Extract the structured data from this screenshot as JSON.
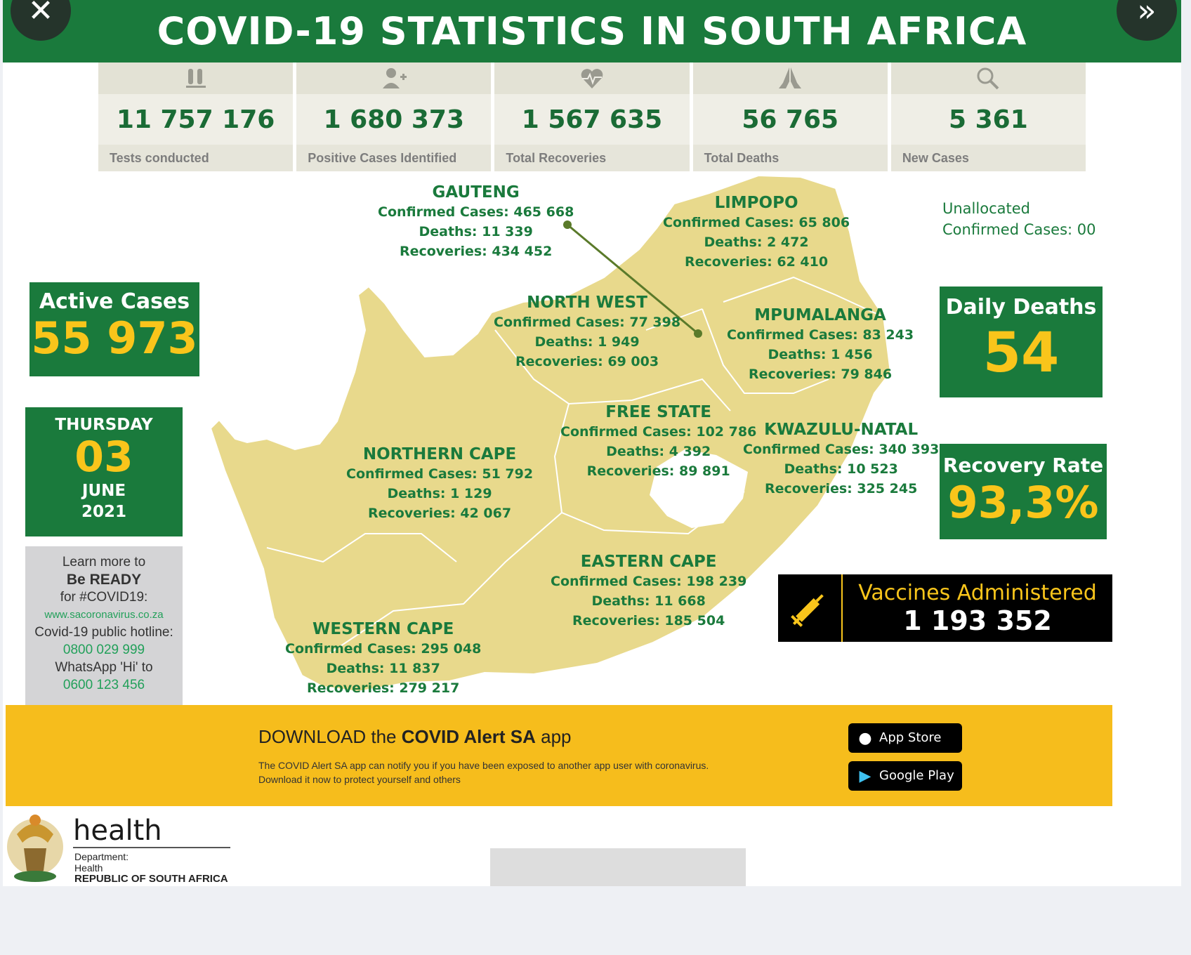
{
  "title": "COVID-19 STATISTICS IN SOUTH AFRICA",
  "stats": [
    {
      "icon": "test-tubes-icon",
      "value": "11 757 176",
      "label": "Tests conducted"
    },
    {
      "icon": "add-person-icon",
      "value": "1  680 373",
      "label": "Positive Cases Identified"
    },
    {
      "icon": "heart-pulse-icon",
      "value": "1 567 635",
      "label": "Total Recoveries"
    },
    {
      "icon": "praying-hands-icon",
      "value": "56 765",
      "label": "Total Deaths"
    },
    {
      "icon": "search-icon",
      "value": "5 361",
      "label": "New Cases"
    }
  ],
  "provinces": {
    "gauteng": {
      "name": "GAUTENG",
      "confirmed": "Confirmed Cases: 465 668",
      "deaths": "Deaths: 11 339",
      "recoveries": "Recoveries: 434 452"
    },
    "limpopo": {
      "name": "LIMPOPO",
      "confirmed": "Confirmed Cases: 65 806",
      "deaths": "Deaths: 2 472",
      "recoveries": "Recoveries: 62 410"
    },
    "north_west": {
      "name": "NORTH WEST",
      "confirmed": "Confirmed Cases: 77 398",
      "deaths": "Deaths: 1 949",
      "recoveries": "Recoveries: 69 003"
    },
    "mpumalanga": {
      "name": "MPUMALANGA",
      "confirmed": "Confirmed Cases: 83 243",
      "deaths": "Deaths:  1 456",
      "recoveries": "Recoveries: 79 846"
    },
    "free_state": {
      "name": "FREE STATE",
      "confirmed": "Confirmed Cases: 102 786",
      "deaths": "Deaths: 4 392",
      "recoveries": "Recoveries:  89 891"
    },
    "kwazulu_natal": {
      "name": "KWAZULU-NATAL",
      "confirmed": "Confirmed Cases: 340 393",
      "deaths": "Deaths: 10 523",
      "recoveries": "Recoveries: 325 245"
    },
    "northern_cape": {
      "name": "NORTHERN CAPE",
      "confirmed": "Confirmed Cases: 51 792",
      "deaths": "Deaths: 1 129",
      "recoveries": "Recoveries: 42 067"
    },
    "eastern_cape": {
      "name": "EASTERN CAPE",
      "confirmed": "Confirmed Cases: 198 239",
      "deaths": "Deaths: 11 668",
      "recoveries": "Recoveries: 185 504"
    },
    "western_cape": {
      "name": "WESTERN CAPE",
      "confirmed": "Confirmed Cases: 295 048",
      "deaths": "Deaths: 11 837",
      "recoveries": "Recoveries: 279 217"
    }
  },
  "unallocated": {
    "line1": "Unallocated",
    "line2": "Confirmed Cases: 00"
  },
  "active_cases": {
    "label": "Active Cases",
    "value": "55 973"
  },
  "date": {
    "weekday": "THURSDAY",
    "day": "03",
    "month": "JUNE",
    "year": "2021"
  },
  "daily_deaths": {
    "label": "Daily Deaths",
    "value": "54"
  },
  "recovery_rate": {
    "label": "Recovery Rate",
    "value": "93,3%"
  },
  "vaccines": {
    "label": "Vaccines Administered",
    "value": "1 193 352"
  },
  "learn_more": {
    "line1": "Learn more to",
    "line2": "Be READY",
    "line3": "for #COVID19:",
    "website": "www.sacoronavirus.co.za",
    "hotline_label": "Covid-19 public hotline:",
    "hotline": "0800 029 999",
    "whatsapp_label": "WhatsApp 'Hi' to",
    "whatsapp": "0600 123 456"
  },
  "banner": {
    "prefix": "DOWNLOAD the ",
    "app_name": "COVID Alert SA",
    "suffix": " app",
    "description": "The COVID Alert SA app can notify you if you have been exposed to another app user with coronavirus. Download it now to protect yourself and others",
    "app_store": "App Store",
    "google_play": "Google Play"
  },
  "footer": {
    "brand": "health",
    "dept_line1": "Department:",
    "dept_line2": "Health",
    "country": "REPUBLIC OF SOUTH AFRICA"
  },
  "colors": {
    "green": "#1a7a3c",
    "yellow": "#f9c51b",
    "map_fill": "#e8d98c",
    "banner": "#f6bd1c"
  }
}
